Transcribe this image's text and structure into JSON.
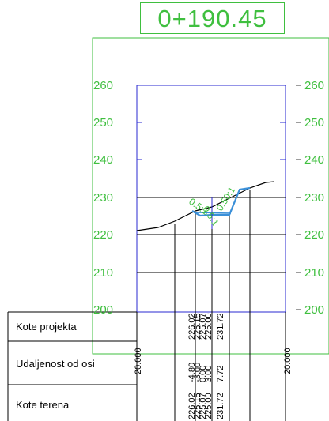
{
  "station": "0+190.45",
  "elevations_left": [
    "260",
    "250",
    "240",
    "230",
    "220",
    "210",
    "200"
  ],
  "elevations_right": [
    "260",
    "250",
    "240",
    "230",
    "220",
    "210",
    "200"
  ],
  "slope_labels": {
    "left": "0.5:1",
    "right": "0.50:1",
    "mid": "0.5:1"
  },
  "table": {
    "rows": [
      "Kote projekta",
      "Udaljenost od osi",
      "Kote terena"
    ],
    "offset_left": "20.000",
    "offset_right": "20.000",
    "columns": [
      {
        "projekt": "226.02",
        "dist": "-4.80",
        "teren": "226.02"
      },
      {
        "projekt": "225.15",
        "dist": "-3.00",
        "teren": "225.15"
      },
      {
        "projekt": "225.07",
        "dist": "0.00",
        "teren": "225.07"
      },
      {
        "projekt": "225.00",
        "dist": "3.00",
        "teren": "225.00"
      },
      {
        "projekt": "231.72",
        "dist": "7.72",
        "teren": "231.72"
      }
    ]
  },
  "colors": {
    "frame": "#3fbf3f",
    "axis": "#2a2ad0",
    "grid": "#000000",
    "design": "#3a8fd8",
    "text": "#000000"
  }
}
